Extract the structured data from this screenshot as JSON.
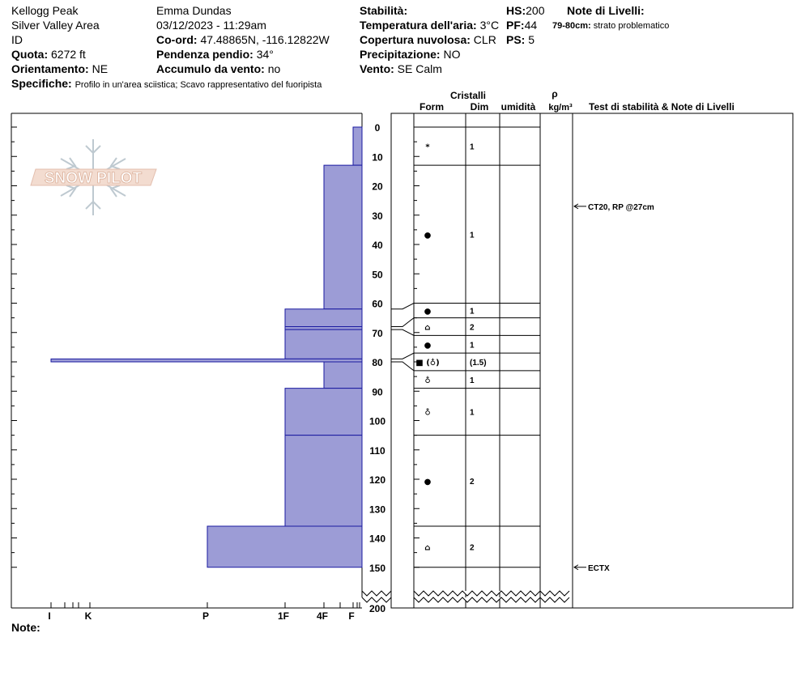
{
  "header": {
    "location": "Kellogg Peak",
    "area": "Silver Valley Area",
    "state": "ID",
    "elevation_label": "Quota:",
    "elevation_value": "6272 ft",
    "aspect_label": "Orientamento:",
    "aspect_value": "NE",
    "specifics_label": "Specifiche:",
    "specifics_value": "Profilo in un'area sciistica; Scavo rappresentativo del fuoripista",
    "observer": "Emma Dundas",
    "datetime": "03/12/2023 - 11:29am",
    "coord_label": "Co-ord:",
    "coord_value": "47.48865N, -116.12822W",
    "slope_label": "Pendenza pendio:",
    "slope_value": "34°",
    "wind_loading_label": "Accumulo da vento:",
    "wind_loading_value": "no",
    "stability_label": "Stabilità:",
    "air_temp_label": "Temperatura dell'aria:",
    "air_temp_value": "3°C",
    "cloud_label": "Copertura nuvolosa:",
    "cloud_value": "CLR",
    "precip_label": "Precipitazione:",
    "precip_value": "NO",
    "wind_label": "Vento:",
    "wind_value": "SE Calm",
    "hs_label": "HS:",
    "hs_value": "200",
    "pf_label": "PF:",
    "pf_value": "44",
    "ps_label": "PS:",
    "ps_value": "5",
    "layer_notes_label": "Note di Livelli:",
    "layer_note_depth": "79-80cm:",
    "layer_note_text": "strato problematico",
    "notes_label": "Note:"
  },
  "logo_text": "SNOW PILOT",
  "colors": {
    "hardness_fill": "#9c9cd6",
    "hardness_stroke": "#1a1aa0",
    "axis": "#000000"
  },
  "columns": {
    "crystals": "Cristalli",
    "form": "Form",
    "size": "Dim",
    "moisture": "umidità",
    "rho": "ρ",
    "density_unit": "kg/m³",
    "tests_notes": "Test di stabilità & Note di Livelli"
  },
  "chart_data": {
    "type": "snow_profile",
    "depth_axis": {
      "range": [
        0,
        200
      ],
      "ticks": [
        0,
        10,
        20,
        30,
        40,
        50,
        60,
        70,
        80,
        90,
        100,
        110,
        120,
        130,
        140,
        150,
        200
      ],
      "break_after": 150
    },
    "hardness_axis": {
      "labels": [
        "I",
        "K",
        "P",
        "1F",
        "4F",
        "F"
      ]
    },
    "hardness_layers": [
      {
        "top": 0,
        "bottom": 13,
        "hardness": "F"
      },
      {
        "top": 13,
        "bottom": 62,
        "hardness": "4F"
      },
      {
        "top": 62,
        "bottom": 68,
        "hardness": "1F"
      },
      {
        "top": 68,
        "bottom": 69,
        "hardness": "1F"
      },
      {
        "top": 69,
        "bottom": 79,
        "hardness": "1F"
      },
      {
        "top": 79,
        "bottom": 80,
        "hardness": "I"
      },
      {
        "top": 80,
        "bottom": 89,
        "hardness": "4F"
      },
      {
        "top": 89,
        "bottom": 105,
        "hardness": "1F"
      },
      {
        "top": 105,
        "bottom": 136,
        "hardness": "1F"
      },
      {
        "top": 136,
        "bottom": 150,
        "hardness": "P"
      }
    ],
    "layers": [
      {
        "top": 0,
        "bottom": 13,
        "form": "*",
        "size": "1"
      },
      {
        "top": 13,
        "bottom": 60,
        "form": "●",
        "size": "1"
      },
      {
        "top": 60,
        "bottom": 65,
        "form": "●",
        "size": "1"
      },
      {
        "top": 65,
        "bottom": 71,
        "form": "⌂",
        "size": "2"
      },
      {
        "top": 71,
        "bottom": 77,
        "form": "●",
        "size": "1"
      },
      {
        "top": 77,
        "bottom": 83,
        "form": "■ (♁)",
        "size": "(1.5)"
      },
      {
        "top": 83,
        "bottom": 89,
        "form": "♁",
        "size": "1"
      },
      {
        "top": 89,
        "bottom": 105,
        "form": "♁",
        "size": "1"
      },
      {
        "top": 105,
        "bottom": 136,
        "form": "●",
        "size": "2"
      },
      {
        "top": 136,
        "bottom": 150,
        "form": "⌂",
        "size": "2"
      }
    ],
    "tests": [
      {
        "depth": 27,
        "label": "CT20, RP @27cm"
      },
      {
        "depth": 150,
        "label": "ECTX"
      }
    ]
  }
}
